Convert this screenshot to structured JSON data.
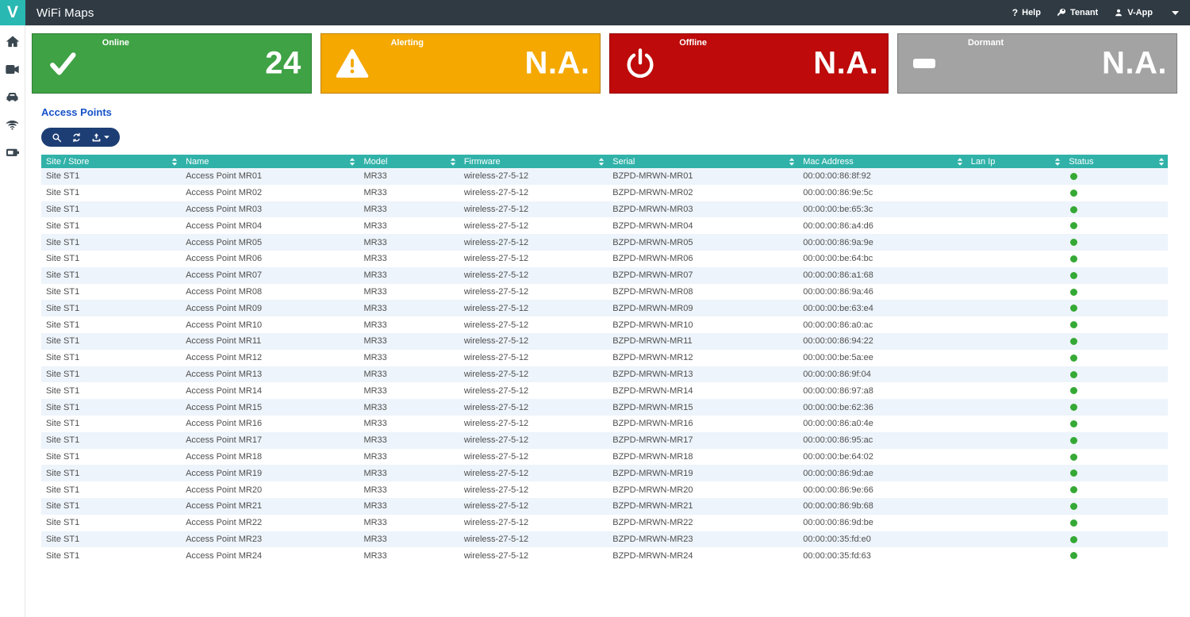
{
  "navbar": {
    "logo": "V",
    "title": "WiFi Maps",
    "help_prefix": "?",
    "help_label": "Help",
    "tenant_label": "Tenant",
    "user_label": "V-App"
  },
  "sidebar": {
    "items": [
      {
        "icon": "home-icon"
      },
      {
        "icon": "video-camera-icon"
      },
      {
        "icon": "car-icon"
      },
      {
        "icon": "wifi-icon"
      },
      {
        "icon": "battery-icon"
      }
    ]
  },
  "cards": [
    {
      "label": "Online",
      "value": "24",
      "color": "#3FA245",
      "icon": "check-icon"
    },
    {
      "label": "Alerting",
      "value": "N.A.",
      "color": "#F4A800",
      "icon": "warning-triangle-icon"
    },
    {
      "label": "Offline",
      "value": "N.A.",
      "color": "#BE0A0A",
      "icon": "power-icon"
    },
    {
      "label": "Dormant",
      "value": "N.A.",
      "color": "#A3A3A3",
      "icon": "dash-icon"
    }
  ],
  "section": {
    "title": "Access Points"
  },
  "toolbar": {
    "buttons": [
      "search",
      "refresh",
      "export"
    ]
  },
  "table": {
    "columns": [
      "Site / Store",
      "Name",
      "Model",
      "Firmware",
      "Serial",
      "Mac Address",
      "Lan Ip",
      "Status"
    ],
    "rows": [
      {
        "site": "Site ST1",
        "name": "Access Point MR01",
        "model": "MR33",
        "firmware": "wireless-27-5-12",
        "serial": "BZPD-MRWN-MR01",
        "mac": "00:00:00:86:8f:92",
        "lan_ip": "",
        "status": "online"
      },
      {
        "site": "Site ST1",
        "name": "Access Point MR02",
        "model": "MR33",
        "firmware": "wireless-27-5-12",
        "serial": "BZPD-MRWN-MR02",
        "mac": "00:00:00:86:9e:5c",
        "lan_ip": "",
        "status": "online"
      },
      {
        "site": "Site ST1",
        "name": "Access Point MR03",
        "model": "MR33",
        "firmware": "wireless-27-5-12",
        "serial": "BZPD-MRWN-MR03",
        "mac": "00:00:00:be:65:3c",
        "lan_ip": "",
        "status": "online"
      },
      {
        "site": "Site ST1",
        "name": "Access Point MR04",
        "model": "MR33",
        "firmware": "wireless-27-5-12",
        "serial": "BZPD-MRWN-MR04",
        "mac": "00:00:00:86:a4:d6",
        "lan_ip": "",
        "status": "online"
      },
      {
        "site": "Site ST1",
        "name": "Access Point MR05",
        "model": "MR33",
        "firmware": "wireless-27-5-12",
        "serial": "BZPD-MRWN-MR05",
        "mac": "00:00:00:86:9a:9e",
        "lan_ip": "",
        "status": "online"
      },
      {
        "site": "Site ST1",
        "name": "Access Point MR06",
        "model": "MR33",
        "firmware": "wireless-27-5-12",
        "serial": "BZPD-MRWN-MR06",
        "mac": "00:00:00:be:64:bc",
        "lan_ip": "",
        "status": "online"
      },
      {
        "site": "Site ST1",
        "name": "Access Point MR07",
        "model": "MR33",
        "firmware": "wireless-27-5-12",
        "serial": "BZPD-MRWN-MR07",
        "mac": "00:00:00:86:a1:68",
        "lan_ip": "",
        "status": "online"
      },
      {
        "site": "Site ST1",
        "name": "Access Point MR08",
        "model": "MR33",
        "firmware": "wireless-27-5-12",
        "serial": "BZPD-MRWN-MR08",
        "mac": "00:00:00:86:9a:46",
        "lan_ip": "",
        "status": "online"
      },
      {
        "site": "Site ST1",
        "name": "Access Point MR09",
        "model": "MR33",
        "firmware": "wireless-27-5-12",
        "serial": "BZPD-MRWN-MR09",
        "mac": "00:00:00:be:63:e4",
        "lan_ip": "",
        "status": "online"
      },
      {
        "site": "Site ST1",
        "name": "Access Point MR10",
        "model": "MR33",
        "firmware": "wireless-27-5-12",
        "serial": "BZPD-MRWN-MR10",
        "mac": "00:00:00:86:a0:ac",
        "lan_ip": "",
        "status": "online"
      },
      {
        "site": "Site ST1",
        "name": "Access Point MR11",
        "model": "MR33",
        "firmware": "wireless-27-5-12",
        "serial": "BZPD-MRWN-MR11",
        "mac": "00:00:00:86:94:22",
        "lan_ip": "",
        "status": "online"
      },
      {
        "site": "Site ST1",
        "name": "Access Point MR12",
        "model": "MR33",
        "firmware": "wireless-27-5-12",
        "serial": "BZPD-MRWN-MR12",
        "mac": "00:00:00:be:5a:ee",
        "lan_ip": "",
        "status": "online"
      },
      {
        "site": "Site ST1",
        "name": "Access Point MR13",
        "model": "MR33",
        "firmware": "wireless-27-5-12",
        "serial": "BZPD-MRWN-MR13",
        "mac": "00:00:00:86:9f:04",
        "lan_ip": "",
        "status": "online"
      },
      {
        "site": "Site ST1",
        "name": "Access Point MR14",
        "model": "MR33",
        "firmware": "wireless-27-5-12",
        "serial": "BZPD-MRWN-MR14",
        "mac": "00:00:00:86:97:a8",
        "lan_ip": "",
        "status": "online"
      },
      {
        "site": "Site ST1",
        "name": "Access Point MR15",
        "model": "MR33",
        "firmware": "wireless-27-5-12",
        "serial": "BZPD-MRWN-MR15",
        "mac": "00:00:00:be:62:36",
        "lan_ip": "",
        "status": "online"
      },
      {
        "site": "Site ST1",
        "name": "Access Point MR16",
        "model": "MR33",
        "firmware": "wireless-27-5-12",
        "serial": "BZPD-MRWN-MR16",
        "mac": "00:00:00:86:a0:4e",
        "lan_ip": "",
        "status": "online"
      },
      {
        "site": "Site ST1",
        "name": "Access Point MR17",
        "model": "MR33",
        "firmware": "wireless-27-5-12",
        "serial": "BZPD-MRWN-MR17",
        "mac": "00:00:00:86:95:ac",
        "lan_ip": "",
        "status": "online"
      },
      {
        "site": "Site ST1",
        "name": "Access Point MR18",
        "model": "MR33",
        "firmware": "wireless-27-5-12",
        "serial": "BZPD-MRWN-MR18",
        "mac": "00:00:00:be:64:02",
        "lan_ip": "",
        "status": "online"
      },
      {
        "site": "Site ST1",
        "name": "Access Point MR19",
        "model": "MR33",
        "firmware": "wireless-27-5-12",
        "serial": "BZPD-MRWN-MR19",
        "mac": "00:00:00:86:9d:ae",
        "lan_ip": "",
        "status": "online"
      },
      {
        "site": "Site ST1",
        "name": "Access Point MR20",
        "model": "MR33",
        "firmware": "wireless-27-5-12",
        "serial": "BZPD-MRWN-MR20",
        "mac": "00:00:00:86:9e:66",
        "lan_ip": "",
        "status": "online"
      },
      {
        "site": "Site ST1",
        "name": "Access Point MR21",
        "model": "MR33",
        "firmware": "wireless-27-5-12",
        "serial": "BZPD-MRWN-MR21",
        "mac": "00:00:00:86:9b:68",
        "lan_ip": "",
        "status": "online"
      },
      {
        "site": "Site ST1",
        "name": "Access Point MR22",
        "model": "MR33",
        "firmware": "wireless-27-5-12",
        "serial": "BZPD-MRWN-MR22",
        "mac": "00:00:00:86:9d:be",
        "lan_ip": "",
        "status": "online"
      },
      {
        "site": "Site ST1",
        "name": "Access Point MR23",
        "model": "MR33",
        "firmware": "wireless-27-5-12",
        "serial": "BZPD-MRWN-MR23",
        "mac": "00:00:00:35:fd:e0",
        "lan_ip": "",
        "status": "online"
      },
      {
        "site": "Site ST1",
        "name": "Access Point MR24",
        "model": "MR33",
        "firmware": "wireless-27-5-12",
        "serial": "BZPD-MRWN-MR24",
        "mac": "00:00:00:35:fd:63",
        "lan_ip": "",
        "status": "online"
      }
    ]
  },
  "colors": {
    "navbar_bg": "#2F3A43",
    "logo_bg": "#29B8B2",
    "table_header_bg": "#31B2A9",
    "row_stripe": "#EDF4FB",
    "link_blue": "#1652C9",
    "toolbar_bg": "#1D3E74",
    "status_online": "#35A935"
  }
}
